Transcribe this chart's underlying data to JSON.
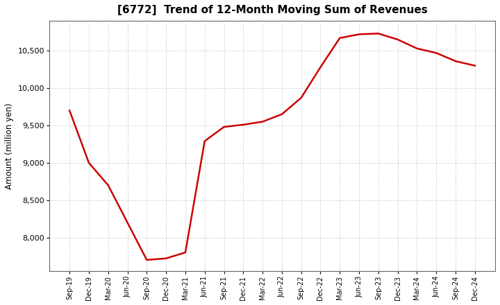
{
  "title": "[6772]  Trend of 12-Month Moving Sum of Revenues",
  "ylabel": "Amount (million yen)",
  "line_color": "#cc0000",
  "line_width": 1.8,
  "background_color": "#ffffff",
  "plot_bg_color": "#ffffff",
  "grid_color": "#bbbbbb",
  "ylim": [
    7550,
    10900
  ],
  "yticks": [
    8000,
    8500,
    9000,
    9500,
    10000,
    10500
  ],
  "x_labels": [
    "Sep-19",
    "Dec-19",
    "Mar-20",
    "Jun-20",
    "Sep-20",
    "Dec-20",
    "Mar-21",
    "Jun-21",
    "Sep-21",
    "Dec-21",
    "Mar-22",
    "Jun-22",
    "Sep-22",
    "Dec-22",
    "Mar-23",
    "Jun-23",
    "Sep-23",
    "Dec-23",
    "Mar-24",
    "Jun-24",
    "Sep-24",
    "Dec-24"
  ],
  "values": [
    9700,
    9000,
    8700,
    8200,
    7700,
    7720,
    7800,
    9290,
    9480,
    9510,
    9550,
    9650,
    9870,
    10280,
    10670,
    10720,
    10730,
    10650,
    10530,
    10470,
    10360,
    10300
  ]
}
